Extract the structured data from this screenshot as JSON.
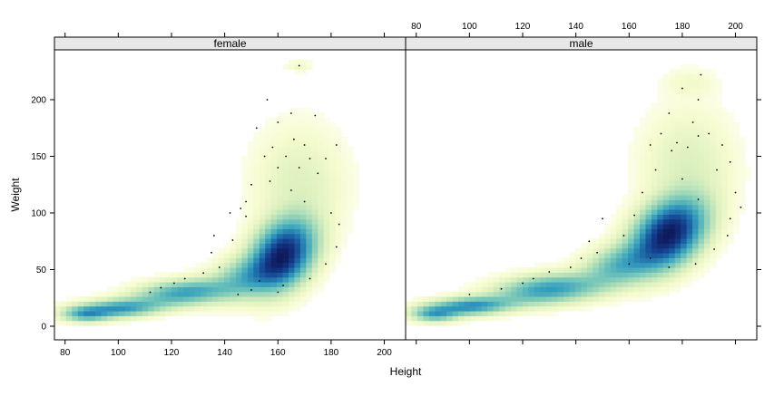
{
  "chart_data": {
    "type": "heatmap",
    "xlabel": "Height",
    "ylabel": "Weight",
    "xlim": [
      76,
      208
    ],
    "ylim": [
      -12,
      244
    ],
    "x_ticks": [
      80,
      100,
      120,
      140,
      160,
      180,
      200
    ],
    "y_ticks": [
      0,
      50,
      100,
      150,
      200
    ],
    "panels": [
      {
        "name": "female",
        "mode": [
          162,
          64
        ],
        "clusters": [
          {
            "x": 162,
            "y": 64,
            "sx": 7,
            "sy": 18,
            "rho": 0.3,
            "w": 1.0
          },
          {
            "x": 150,
            "y": 45,
            "sx": 9,
            "sy": 12,
            "rho": 0.4,
            "w": 0.35
          },
          {
            "x": 125,
            "y": 30,
            "sx": 11,
            "sy": 7,
            "rho": 0.3,
            "w": 0.45
          },
          {
            "x": 100,
            "y": 16,
            "sx": 10,
            "sy": 5,
            "rho": 0.3,
            "w": 0.5
          },
          {
            "x": 88,
            "y": 11,
            "sx": 5,
            "sy": 4,
            "rho": 0.0,
            "w": 0.35
          },
          {
            "x": 168,
            "y": 125,
            "sx": 10,
            "sy": 30,
            "rho": 0.0,
            "w": 0.08
          },
          {
            "x": 168,
            "y": 230,
            "sx": 3,
            "sy": 3,
            "rho": 0.0,
            "w": 0.04
          }
        ],
        "points": [
          [
            156,
            200
          ],
          [
            168,
            230
          ],
          [
            165,
            188
          ],
          [
            174,
            186
          ],
          [
            160,
            180
          ],
          [
            152,
            175
          ],
          [
            166,
            165
          ],
          [
            158,
            158
          ],
          [
            170,
            160
          ],
          [
            178,
            148
          ],
          [
            163,
            150
          ],
          [
            155,
            150
          ],
          [
            172,
            148
          ],
          [
            168,
            140
          ],
          [
            182,
            160
          ],
          [
            160,
            140
          ],
          [
            175,
            135
          ],
          [
            150,
            125
          ],
          [
            148,
            110
          ],
          [
            146,
            104
          ],
          [
            148,
            97
          ],
          [
            142,
            100
          ],
          [
            157,
            128
          ],
          [
            165,
            120
          ],
          [
            170,
            110
          ],
          [
            180,
            100
          ],
          [
            183,
            90
          ],
          [
            182,
            70
          ],
          [
            178,
            55
          ],
          [
            136,
            80
          ],
          [
            143,
            76
          ],
          [
            135,
            65
          ],
          [
            138,
            52
          ],
          [
            132,
            47
          ],
          [
            125,
            42
          ],
          [
            121,
            38
          ],
          [
            116,
            34
          ],
          [
            112,
            30
          ],
          [
            153,
            40
          ],
          [
            162,
            36
          ],
          [
            172,
            42
          ],
          [
            160,
            30
          ],
          [
            150,
            32
          ],
          [
            145,
            28
          ]
        ]
      },
      {
        "name": "male",
        "mode": [
          175,
          82
        ],
        "clusters": [
          {
            "x": 175,
            "y": 82,
            "sx": 8,
            "sy": 18,
            "rho": 0.35,
            "w": 1.0
          },
          {
            "x": 158,
            "y": 55,
            "sx": 9,
            "sy": 12,
            "rho": 0.4,
            "w": 0.35
          },
          {
            "x": 130,
            "y": 33,
            "sx": 12,
            "sy": 8,
            "rho": 0.3,
            "w": 0.45
          },
          {
            "x": 100,
            "y": 18,
            "sx": 10,
            "sy": 5,
            "rho": 0.3,
            "w": 0.5
          },
          {
            "x": 87,
            "y": 11,
            "sx": 5,
            "sy": 4,
            "rho": 0.0,
            "w": 0.35
          },
          {
            "x": 182,
            "y": 140,
            "sx": 10,
            "sy": 30,
            "rho": 0.0,
            "w": 0.08
          },
          {
            "x": 183,
            "y": 215,
            "sx": 6,
            "sy": 8,
            "rho": 0.0,
            "w": 0.03
          }
        ],
        "points": [
          [
            187,
            222
          ],
          [
            180,
            210
          ],
          [
            186,
            200
          ],
          [
            175,
            188
          ],
          [
            184,
            180
          ],
          [
            172,
            170
          ],
          [
            190,
            170
          ],
          [
            178,
            162
          ],
          [
            182,
            158
          ],
          [
            186,
            168
          ],
          [
            176,
            155
          ],
          [
            168,
            160
          ],
          [
            195,
            160
          ],
          [
            198,
            145
          ],
          [
            193,
            138
          ],
          [
            170,
            138
          ],
          [
            180,
            130
          ],
          [
            165,
            118
          ],
          [
            186,
            112
          ],
          [
            200,
            118
          ],
          [
            202,
            105
          ],
          [
            198,
            95
          ],
          [
            197,
            80
          ],
          [
            192,
            68
          ],
          [
            162,
            98
          ],
          [
            158,
            80
          ],
          [
            150,
            95
          ],
          [
            145,
            75
          ],
          [
            148,
            65
          ],
          [
            142,
            60
          ],
          [
            138,
            52
          ],
          [
            130,
            48
          ],
          [
            124,
            42
          ],
          [
            120,
            38
          ],
          [
            112,
            33
          ],
          [
            100,
            28
          ],
          [
            168,
            60
          ],
          [
            160,
            55
          ],
          [
            175,
            52
          ],
          [
            185,
            55
          ]
        ]
      }
    ]
  }
}
